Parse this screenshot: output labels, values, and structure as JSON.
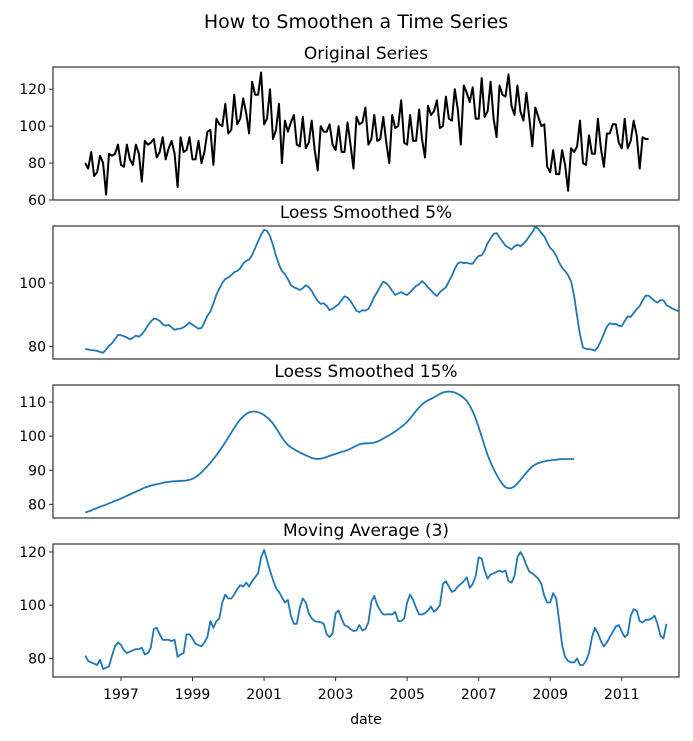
{
  "chart_data": {
    "type": "line",
    "title": "How to Smoothen a Time Series",
    "xlabel": "date",
    "x_start": "1996-01",
    "x_frequency": "monthly",
    "x_ticks": [
      "1997",
      "1999",
      "2001",
      "2003",
      "2005",
      "2007",
      "2009",
      "2011"
    ],
    "x_tick_years": [
      1997,
      1999,
      2001,
      2003,
      2005,
      2007,
      2009,
      2011
    ],
    "xlim": [
      1995.1,
      2012.6
    ],
    "subplots": [
      {
        "title": "Original Series",
        "color": "#000000",
        "ylim": [
          60,
          132
        ],
        "yticks": [
          60,
          80,
          100,
          120
        ],
        "values": [
          80,
          77,
          86,
          73,
          75,
          84,
          80,
          63,
          85,
          84,
          85,
          90,
          79,
          78,
          90,
          82,
          79,
          90,
          85,
          70,
          92,
          90,
          91,
          93,
          83,
          86,
          94,
          82,
          88,
          92,
          85,
          67,
          94,
          86,
          87,
          94,
          82,
          82,
          92,
          80,
          86,
          97,
          98,
          79,
          104,
          101,
          100,
          112,
          96,
          98,
          117,
          101,
          104,
          115,
          107,
          96,
          124,
          117,
          117,
          129,
          101,
          104,
          120,
          93,
          98,
          112,
          80,
          103,
          97,
          102,
          106,
          90,
          89,
          105,
          88,
          91,
          103,
          87,
          76,
          100,
          97,
          97,
          101,
          90,
          87,
          100,
          86,
          86,
          102,
          90,
          77,
          105,
          101,
          102,
          110,
          90,
          93,
          106,
          92,
          93,
          105,
          91,
          80,
          106,
          99,
          100,
          114,
          91,
          90,
          106,
          92,
          92,
          109,
          93,
          83,
          111,
          106,
          108,
          114,
          99,
          100,
          116,
          104,
          103,
          120,
          109,
          90,
          122,
          118,
          113,
          121,
          104,
          104,
          126,
          105,
          108,
          124,
          104,
          94,
          122,
          117,
          116,
          128,
          111,
          106,
          122,
          108,
          103,
          118,
          104,
          89,
          110,
          105,
          100,
          101,
          78,
          75,
          87,
          74,
          74,
          87,
          79,
          65,
          88,
          86,
          89,
          103,
          80,
          79,
          95,
          85,
          85,
          104,
          88,
          78,
          96,
          96,
          101,
          101,
          91,
          88,
          104,
          88,
          92,
          103,
          95,
          77,
          94,
          93,
          93
        ]
      },
      {
        "title": "Loess Smoothed 5%",
        "color": "#1f77b4",
        "ylim": [
          76,
          118
        ],
        "yticks": [
          80,
          100
        ],
        "values": [
          79.2,
          79,
          78.8,
          78.7,
          78.6,
          78.2,
          78.0,
          79,
          80.2,
          81,
          82.3,
          83.6,
          83.5,
          83.2,
          82.8,
          82.2,
          82.7,
          83.4,
          83.0,
          83.8,
          85,
          86.6,
          87.8,
          88.8,
          88.6,
          88.0,
          87.0,
          86.5,
          86.8,
          86.0,
          85.2,
          85.5,
          85.6,
          86,
          86.7,
          87.5,
          86.8,
          86.2,
          85.6,
          85.8,
          87.6,
          89.6,
          91,
          93.5,
          96.3,
          98.2,
          100,
          101.3,
          101.7,
          102.5,
          103.4,
          103.8,
          104.6,
          106.2,
          107,
          107.4,
          108.8,
          111,
          113.2,
          115.2,
          116.8,
          116.5,
          114.8,
          112,
          108.6,
          105.8,
          103.8,
          102.8,
          101.2,
          99.3,
          98.6,
          98.3,
          97.8,
          98.4,
          99.3,
          98.7,
          97.5,
          95.8,
          94.3,
          93.4,
          93.6,
          92.8,
          91.4,
          91.9,
          92.6,
          93.3,
          94.6,
          95.8,
          95.4,
          94.3,
          92.8,
          91.2,
          90.8,
          91.4,
          91.3,
          91.8,
          93.6,
          95.6,
          97.2,
          99,
          100.4,
          99.9,
          98.9,
          97.5,
          96.2,
          96.7,
          97.1,
          96.6,
          96.2,
          97.1,
          98.1,
          99.1,
          99.6,
          100.6,
          99.8,
          98.6,
          97.7,
          96.6,
          95.9,
          97.1,
          97.9,
          98.6,
          100.5,
          102.3,
          104.5,
          106.2,
          106.6,
          106.3,
          106.4,
          106.1,
          106.1,
          107.5,
          108.6,
          108.7,
          110.3,
          112.6,
          114.1,
          115.5,
          115.8,
          114.4,
          113,
          111.8,
          111.2,
          110.6,
          111.6,
          112.1,
          111.6,
          112.4,
          113.4,
          114.8,
          116,
          117.8,
          117.1,
          115.8,
          114.7,
          112.8,
          111.1,
          110.2,
          108.6,
          106.4,
          104.8,
          103.8,
          102.4,
          100.5,
          96,
          89.5,
          83.7,
          79.6,
          79.2,
          79.1,
          79.0,
          78.6,
          79.8,
          81.7,
          84,
          86.2,
          87.3,
          87,
          87.1,
          86.5,
          86.4,
          88,
          89.5,
          89.3,
          90.5,
          91.8,
          92.7,
          94.5,
          96,
          96,
          95.2,
          94.3,
          93.8,
          94.6,
          94.5,
          93,
          92.5,
          91.9,
          91.5,
          91.1
        ]
      },
      {
        "title": "Loess Smoothed 15%",
        "color": "#1f77b4",
        "ylim": [
          76,
          115
        ],
        "yticks": [
          80,
          90,
          100,
          110
        ],
        "values": [
          77.6,
          77.9,
          78.2,
          78.6,
          78.9,
          79.3,
          79.6,
          79.9,
          80.3,
          80.6,
          81,
          81.3,
          81.7,
          82.1,
          82.5,
          82.9,
          83.3,
          83.7,
          84.1,
          84.5,
          84.9,
          85.2,
          85.5,
          85.7,
          85.9,
          86.1,
          86.3,
          86.5,
          86.6,
          86.7,
          86.8,
          86.8,
          86.9,
          86.9,
          87,
          87.2,
          87.5,
          88,
          88.6,
          89.4,
          90.3,
          91.2,
          92.2,
          93.3,
          94.4,
          95.6,
          96.9,
          98.2,
          99.6,
          101,
          102.4,
          103.7,
          104.9,
          105.8,
          106.5,
          107,
          107.2,
          107.2,
          107,
          106.7,
          106.2,
          105.5,
          104.7,
          103.7,
          102.4,
          101,
          99.6,
          98.4,
          97.4,
          96.7,
          96.2,
          95.7,
          95.2,
          94.8,
          94.4,
          94,
          93.6,
          93.4,
          93.3,
          93.4,
          93.6,
          93.9,
          94.2,
          94.5,
          94.8,
          95.1,
          95.4,
          95.6,
          95.9,
          96.3,
          96.8,
          97.2,
          97.6,
          97.8,
          97.9,
          97.9,
          98,
          98.1,
          98.4,
          98.8,
          99.3,
          99.8,
          100.3,
          100.8,
          101.4,
          102,
          102.7,
          103.4,
          104.2,
          105.2,
          106.3,
          107.4,
          108.4,
          109.3,
          110,
          110.5,
          110.9,
          111.4,
          111.9,
          112.4,
          112.8,
          113,
          113.1,
          113,
          112.8,
          112.4,
          111.9,
          111.2,
          110.3,
          109,
          107.3,
          105.1,
          102.6,
          99.9,
          97.1,
          94.5,
          92.3,
          90.4,
          88.7,
          87.2,
          85.9,
          85,
          84.7,
          84.8,
          85.3,
          86.1,
          87.1,
          88.2,
          89.3,
          90.3,
          91.1,
          91.7,
          92.1,
          92.4,
          92.6,
          92.8,
          92.9,
          93,
          93.1,
          93.2,
          93.3,
          93.3,
          93.3,
          93.3,
          93.3
        ]
      },
      {
        "title": "Moving Average (3)",
        "color": "#1f77b4",
        "ylim": [
          73,
          123
        ],
        "yticks": [
          80,
          100,
          120
        ],
        "values": [
          81,
          79,
          78.5,
          78,
          77.5,
          79.5,
          76,
          76.5,
          77,
          81,
          84.5,
          86,
          85,
          83,
          82,
          82.5,
          83,
          83.5,
          83.5,
          84,
          81.5,
          82,
          84,
          91,
          91.5,
          89,
          87,
          87,
          87,
          86.5,
          87,
          80.5,
          81.5,
          82,
          89,
          89,
          87.5,
          85.5,
          85,
          84.5,
          86,
          88,
          94,
          91.5,
          94,
          95,
          101,
          104,
          102.5,
          102.5,
          104,
          106,
          107.5,
          107,
          108.5,
          107,
          109,
          110.5,
          112,
          118,
          120.8,
          117,
          113,
          109.5,
          106.5,
          105,
          103,
          101,
          102,
          96,
          93,
          93,
          99,
          102.5,
          101,
          97,
          95,
          94,
          93.8,
          93.6,
          93,
          89,
          88,
          89.5,
          97,
          98,
          95,
          92.5,
          92,
          91,
          90.3,
          90.5,
          92.5,
          90.5,
          91,
          93.5,
          101.5,
          103.5,
          100,
          98,
          96.5,
          96.5,
          96.6,
          96.5,
          97.5,
          94,
          94,
          95,
          101,
          104,
          102,
          99,
          96.5,
          96.5,
          97,
          98,
          99.5,
          97.5,
          98.5,
          100,
          108,
          109,
          107,
          105,
          105.5,
          107,
          108,
          109,
          110.5,
          106.5,
          108,
          111,
          118,
          117.5,
          113,
          110,
          111.5,
          112,
          112.5,
          113,
          112.5,
          113,
          109,
          108.5,
          111,
          118,
          120,
          118,
          115,
          112.5,
          112,
          111,
          110,
          108,
          103.5,
          101,
          101,
          104.5,
          102.5,
          94,
          85,
          80.5,
          79,
          78.5,
          78.5,
          80,
          77.5,
          77.5,
          79,
          82,
          88,
          91.5,
          89.5,
          86.5,
          84.5,
          86,
          88,
          90,
          92,
          92.5,
          90,
          88,
          89,
          96,
          98.5,
          98,
          94,
          93.5,
          94.5,
          94.5,
          95,
          96,
          93,
          88.5,
          87.5,
          93
        ]
      }
    ]
  }
}
